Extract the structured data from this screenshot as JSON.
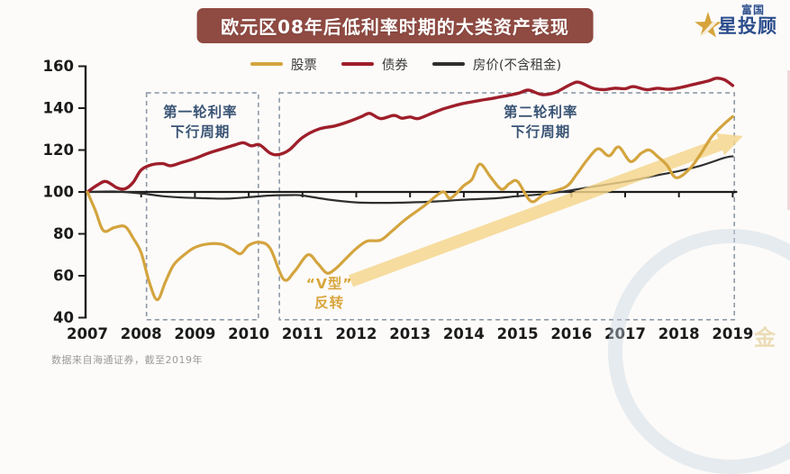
{
  "header": {
    "title": "欧元区08年后低利率时期的大类资产表现",
    "banner_color": "#8f4a42",
    "title_color": "#ffffff"
  },
  "logo": {
    "brand_top": "富国",
    "brand_bottom": "星投顾",
    "star_color": "#d6a33c",
    "text_color": "#2b4c8c"
  },
  "footer": {
    "source": "数据来自海通证券，截至2019年"
  },
  "watermark": {
    "text": "金"
  },
  "chart_data": {
    "type": "line",
    "title": "欧元区08年后低利率时期的大类资产表现",
    "xlabel": "",
    "ylabel": "",
    "x_ticks": [
      2007,
      2008,
      2009,
      2010,
      2011,
      2012,
      2013,
      2014,
      2015,
      2016,
      2017,
      2018,
      2019
    ],
    "y_ticks": [
      40,
      60,
      80,
      100,
      120,
      140,
      160
    ],
    "ylim": [
      40,
      160
    ],
    "xlim": [
      2007,
      2019
    ],
    "baseline_value": 100,
    "grid": false,
    "legend_position": "top",
    "axis_color": "#1c1c1c",
    "series": [
      {
        "id": "stocks",
        "name": "股票",
        "color": "#d4a43e",
        "width": 3.2,
        "points": [
          [
            2007.0,
            100
          ],
          [
            2007.15,
            91
          ],
          [
            2007.3,
            81.5
          ],
          [
            2007.5,
            83
          ],
          [
            2007.7,
            83.5
          ],
          [
            2007.85,
            78
          ],
          [
            2008.0,
            71
          ],
          [
            2008.15,
            57
          ],
          [
            2008.3,
            48.5
          ],
          [
            2008.45,
            57
          ],
          [
            2008.6,
            65
          ],
          [
            2008.8,
            70
          ],
          [
            2009.0,
            73.5
          ],
          [
            2009.25,
            75.2
          ],
          [
            2009.5,
            75
          ],
          [
            2009.7,
            72.5
          ],
          [
            2009.85,
            70.5
          ],
          [
            2010.0,
            74.5
          ],
          [
            2010.2,
            76
          ],
          [
            2010.4,
            73
          ],
          [
            2010.65,
            58.3
          ],
          [
            2010.85,
            62
          ],
          [
            2011.1,
            70
          ],
          [
            2011.28,
            66
          ],
          [
            2011.45,
            61.3
          ],
          [
            2011.6,
            63
          ],
          [
            2011.8,
            68
          ],
          [
            2012.0,
            73
          ],
          [
            2012.2,
            76.5
          ],
          [
            2012.45,
            77
          ],
          [
            2012.65,
            81
          ],
          [
            2012.85,
            85.5
          ],
          [
            2013.0,
            88.5
          ],
          [
            2013.27,
            93.5
          ],
          [
            2013.6,
            100
          ],
          [
            2013.75,
            97
          ],
          [
            2014.0,
            103
          ],
          [
            2014.15,
            106
          ],
          [
            2014.3,
            113.3
          ],
          [
            2014.5,
            107
          ],
          [
            2014.7,
            101.3
          ],
          [
            2014.85,
            104
          ],
          [
            2015.0,
            105
          ],
          [
            2015.25,
            95.5
          ],
          [
            2015.5,
            99
          ],
          [
            2015.9,
            102.5
          ],
          [
            2016.1,
            108.5
          ],
          [
            2016.3,
            115.5
          ],
          [
            2016.5,
            120.6
          ],
          [
            2016.7,
            117.2
          ],
          [
            2016.88,
            121.5
          ],
          [
            2017.1,
            114.5
          ],
          [
            2017.3,
            118.5
          ],
          [
            2017.45,
            120
          ],
          [
            2017.6,
            117
          ],
          [
            2017.77,
            113
          ],
          [
            2017.95,
            106.8
          ],
          [
            2018.2,
            111
          ],
          [
            2018.4,
            118
          ],
          [
            2018.6,
            126
          ],
          [
            2018.8,
            131.5
          ],
          [
            2019.0,
            136
          ]
        ]
      },
      {
        "id": "bonds",
        "name": "债券",
        "color": "#9e1e2a",
        "width": 3.4,
        "points": [
          [
            2007.0,
            100
          ],
          [
            2007.2,
            103.5
          ],
          [
            2007.35,
            105
          ],
          [
            2007.55,
            102
          ],
          [
            2007.7,
            101.5
          ],
          [
            2007.85,
            104.5
          ],
          [
            2008.0,
            110.5
          ],
          [
            2008.2,
            113
          ],
          [
            2008.4,
            113.5
          ],
          [
            2008.55,
            112.5
          ],
          [
            2008.75,
            114
          ],
          [
            2009.0,
            116
          ],
          [
            2009.25,
            118.5
          ],
          [
            2009.5,
            120.5
          ],
          [
            2009.75,
            122.5
          ],
          [
            2009.9,
            123.5
          ],
          [
            2010.05,
            122
          ],
          [
            2010.2,
            122.5
          ],
          [
            2010.4,
            118.5
          ],
          [
            2010.55,
            117.8
          ],
          [
            2010.75,
            120
          ],
          [
            2011.0,
            126
          ],
          [
            2011.3,
            130
          ],
          [
            2011.6,
            131.5
          ],
          [
            2011.85,
            133.5
          ],
          [
            2012.1,
            136
          ],
          [
            2012.25,
            137.5
          ],
          [
            2012.45,
            135
          ],
          [
            2012.7,
            136.5
          ],
          [
            2012.85,
            135.2
          ],
          [
            2013.0,
            135.8
          ],
          [
            2013.15,
            135
          ],
          [
            2013.4,
            137.5
          ],
          [
            2013.6,
            139.5
          ],
          [
            2013.8,
            141
          ],
          [
            2014.0,
            142.3
          ],
          [
            2014.3,
            143.7
          ],
          [
            2014.6,
            145
          ],
          [
            2015.0,
            147
          ],
          [
            2015.2,
            148.6
          ],
          [
            2015.45,
            146.5
          ],
          [
            2015.7,
            147.5
          ],
          [
            2016.0,
            151.5
          ],
          [
            2016.15,
            152.3
          ],
          [
            2016.4,
            149.5
          ],
          [
            2016.6,
            148.8
          ],
          [
            2016.8,
            149.5
          ],
          [
            2017.0,
            149.3
          ],
          [
            2017.15,
            150.3
          ],
          [
            2017.4,
            148.8
          ],
          [
            2017.6,
            149.5
          ],
          [
            2017.8,
            149
          ],
          [
            2018.0,
            149.7
          ],
          [
            2018.3,
            151.5
          ],
          [
            2018.55,
            153
          ],
          [
            2018.7,
            154.3
          ],
          [
            2018.85,
            153.5
          ],
          [
            2019.0,
            150.8
          ]
        ]
      },
      {
        "id": "house",
        "name": "房价(不含租金)",
        "color": "#2f2f2f",
        "width": 2.2,
        "points": [
          [
            2007.0,
            100
          ],
          [
            2007.5,
            100.2
          ],
          [
            2008.0,
            99.3
          ],
          [
            2008.4,
            98
          ],
          [
            2008.8,
            97.3
          ],
          [
            2009.2,
            97
          ],
          [
            2009.6,
            96.8
          ],
          [
            2010.0,
            97.5
          ],
          [
            2010.4,
            98.3
          ],
          [
            2010.8,
            98.5
          ],
          [
            2011.0,
            98.3
          ],
          [
            2011.5,
            96.3
          ],
          [
            2012.0,
            95
          ],
          [
            2012.5,
            94.8
          ],
          [
            2013.0,
            95
          ],
          [
            2013.5,
            95.5
          ],
          [
            2014.0,
            96.3
          ],
          [
            2014.6,
            97
          ],
          [
            2015.0,
            98
          ],
          [
            2015.5,
            99
          ],
          [
            2015.9,
            100.4
          ],
          [
            2016.4,
            102.5
          ],
          [
            2017.0,
            104.9
          ],
          [
            2017.55,
            107.7
          ],
          [
            2018.0,
            110
          ],
          [
            2018.4,
            112.5
          ],
          [
            2018.85,
            116.3
          ],
          [
            2019.0,
            117
          ]
        ]
      }
    ],
    "regions": [
      {
        "id": "cycle-1",
        "label": [
          "第一轮利率",
          "下行周期"
        ],
        "x": [
          2008.1,
          2010.18
        ],
        "y": [
          39,
          147.3
        ],
        "label_pos": [
          2009.1,
          136,
          126.5
        ],
        "color": "#3a5475",
        "border_color": "#8d99a8"
      },
      {
        "id": "cycle-2",
        "label": [
          "第二轮利率",
          "下行周期"
        ],
        "x": [
          2010.57,
          2019.03
        ],
        "y": [
          39,
          147.3
        ],
        "label_pos": [
          2015.43,
          136,
          126.5
        ],
        "color": "#3a5475",
        "border_color": "#8d99a8"
      }
    ],
    "v_annotation": {
      "lines": [
        "“V型”",
        "反转"
      ],
      "x": 2011.5,
      "values": [
        54,
        45
      ],
      "color": "#d9a53c"
    },
    "arrow": {
      "start": [
        2011.9,
        57.5
      ],
      "end": [
        2018.8,
        123
      ],
      "color": "#f5d68c",
      "opacity": 0.82,
      "width": 14
    }
  }
}
